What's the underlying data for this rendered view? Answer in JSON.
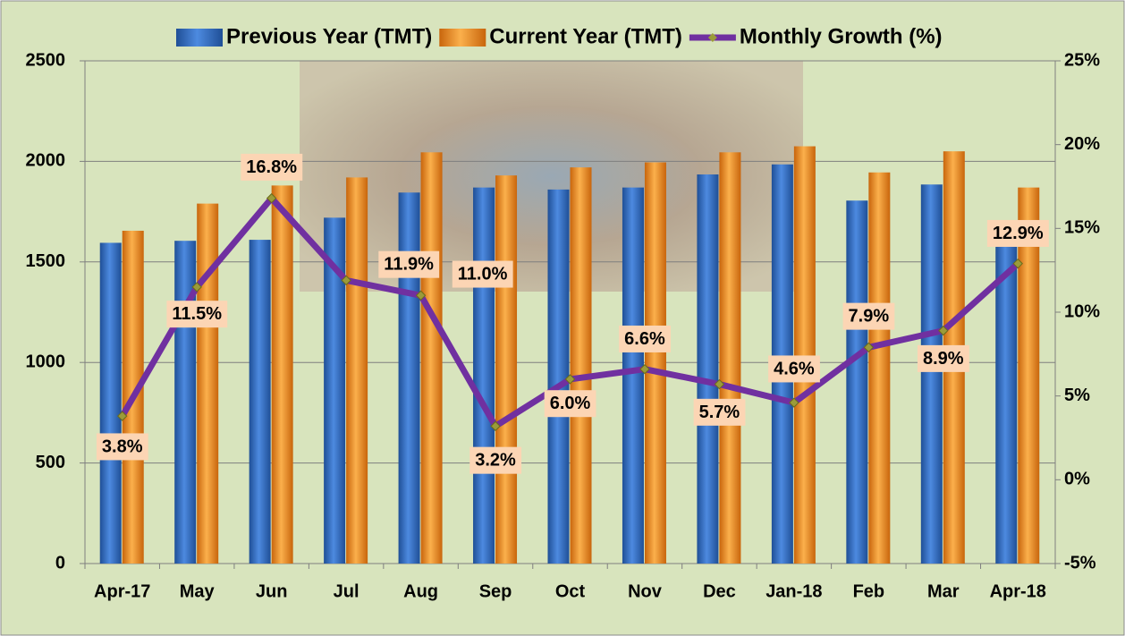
{
  "chart_data": {
    "type": "bar-line",
    "categories": [
      "Apr-17",
      "May",
      "Jun",
      "Jul",
      "Aug",
      "Sep",
      "Oct",
      "Nov",
      "Dec",
      "Jan-18",
      "Feb",
      "Mar",
      "Apr-18"
    ],
    "series": [
      {
        "name": "Previous Year (TMT)",
        "color": "#2e6fc4",
        "type": "bar",
        "values": [
          1595,
          1605,
          1610,
          1720,
          1845,
          1870,
          1860,
          1870,
          1935,
          1985,
          1805,
          1885,
          1655
        ]
      },
      {
        "name": "Current Year (TMT)",
        "color": "#f39424",
        "type": "bar",
        "values": [
          1655,
          1790,
          1880,
          1920,
          2045,
          1930,
          1970,
          1995,
          2045,
          2075,
          1945,
          2050,
          1870
        ]
      },
      {
        "name": "Monthly Growth (%)",
        "color": "#7030a0",
        "type": "line",
        "axis": "y2",
        "values": [
          3.8,
          11.5,
          16.8,
          11.9,
          11.0,
          3.2,
          6.0,
          6.6,
          5.7,
          4.6,
          7.9,
          8.9,
          12.9
        ],
        "value_labels": [
          "3.8%",
          "11.5%",
          "16.8%",
          "11.9%",
          "11.0%",
          "3.2%",
          "6.0%",
          "6.6%",
          "5.7%",
          "4.6%",
          "7.9%",
          "8.9%",
          "12.9%"
        ]
      }
    ],
    "ylim": [
      0,
      2500
    ],
    "yticks": [
      0,
      500,
      1000,
      1500,
      2000,
      2500
    ],
    "y2lim": [
      -5,
      25
    ],
    "y2ticks": [
      {
        "value": -5,
        "label": "-5%"
      },
      {
        "value": 0,
        "label": "0%"
      },
      {
        "value": 5,
        "label": "5%"
      },
      {
        "value": 10,
        "label": "10%"
      },
      {
        "value": 15,
        "label": "15%"
      },
      {
        "value": 20,
        "label": "20%"
      },
      {
        "value": 25,
        "label": "25%"
      }
    ],
    "grid": true,
    "legend": "top"
  }
}
